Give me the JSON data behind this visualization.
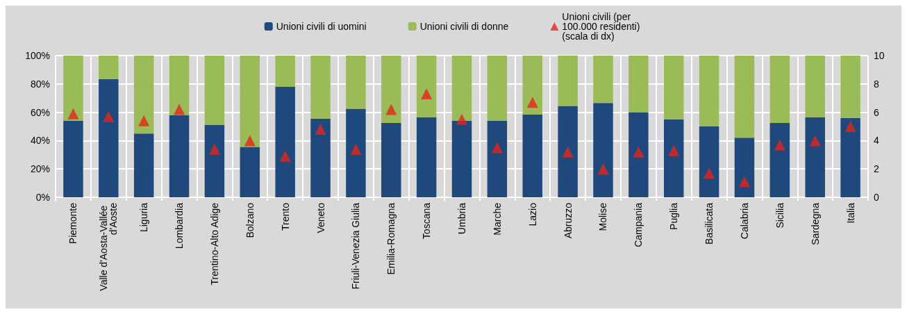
{
  "chart_data": {
    "type": "bar",
    "stacked": true,
    "categories": [
      "Piemonte",
      "Valle d'Aosta-Vallée d'Aoste",
      "Liguria",
      "Lombardia",
      "Trentino-Alto Adige",
      "Bolzano",
      "Trento",
      "Veneto",
      "Friuli-Venezia Giulia",
      "Emilia-Romagna",
      "Toscana",
      "Umbria",
      "Marche",
      "Lazio",
      "Abruzzo",
      "Molise",
      "Campania",
      "Puglia",
      "Basilicata",
      "Calabria",
      "Sicilia",
      "Sardegna",
      "Italia"
    ],
    "series": [
      {
        "name": "Unioni civili di uomini",
        "color": "#1f497d",
        "values": [
          54,
          83.5,
          45,
          58,
          51,
          35.5,
          78,
          55.5,
          62.5,
          52.5,
          56.5,
          54,
          54,
          58.5,
          64.5,
          66.5,
          60,
          55,
          50,
          42,
          52.5,
          56.5,
          56
        ]
      },
      {
        "name": "Unioni civili di donne",
        "color": "#9bbb59",
        "values": [
          46,
          16.5,
          55,
          42,
          49,
          64.5,
          22,
          44.5,
          37.5,
          47.5,
          43.5,
          46,
          46,
          41.5,
          35.5,
          33.5,
          40,
          45,
          50,
          58,
          47.5,
          43.5,
          44
        ]
      },
      {
        "name": "Unioni civili (per 100.000 residenti) (scala di dx)",
        "type": "scatter",
        "axis": "y2",
        "color": "#e3261c",
        "values": [
          5.9,
          5.7,
          5.4,
          6.2,
          3.4,
          4.0,
          2.9,
          4.8,
          3.4,
          6.2,
          7.3,
          5.5,
          3.5,
          6.7,
          3.2,
          2.0,
          3.2,
          3.3,
          1.7,
          1.1,
          3.7,
          4.0,
          5.0
        ]
      }
    ],
    "ylim": [
      0,
      100
    ],
    "yticks": [
      {
        "value": 0,
        "label": "0%"
      },
      {
        "value": 20,
        "label": "20%"
      },
      {
        "value": 40,
        "label": "40%"
      },
      {
        "value": 60,
        "label": "60%"
      },
      {
        "value": 80,
        "label": "80%"
      },
      {
        "value": 100,
        "label": "100%"
      }
    ],
    "y2lim": [
      0,
      10
    ],
    "y2ticks": [
      0,
      2,
      4,
      6,
      8,
      10
    ],
    "marker": "triangle",
    "grid": true,
    "legend": "top"
  }
}
